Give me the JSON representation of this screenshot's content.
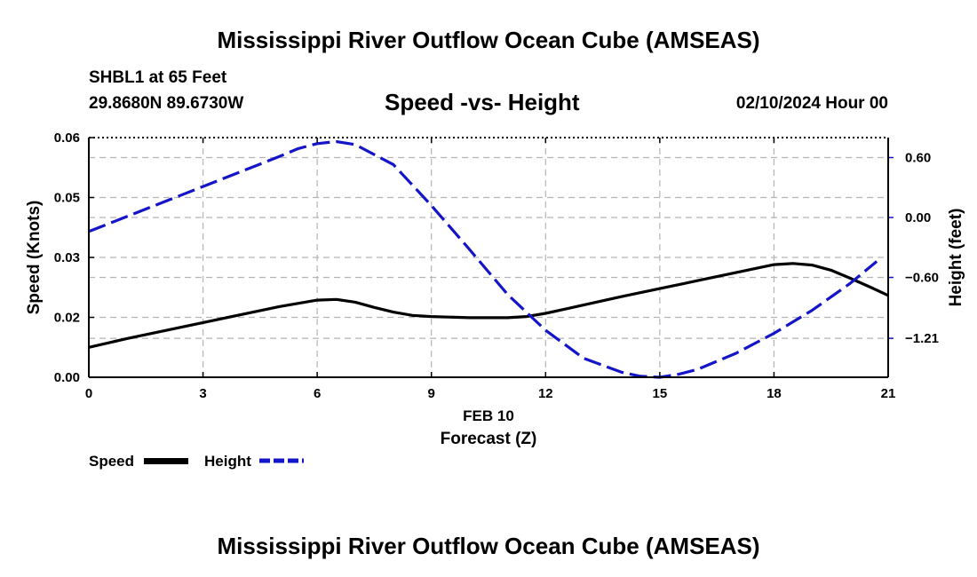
{
  "header": {
    "title": "Mississippi River Outflow Ocean Cube (AMSEAS)",
    "station": "SHBL1 at 65 Feet",
    "coords": "29.8680N  89.6730W",
    "subtitle": "Speed -vs- Height",
    "datetime": "02/10/2024 Hour 00"
  },
  "footer": {
    "title": "Mississippi River Outflow Ocean Cube (AMSEAS)"
  },
  "legend": {
    "speed_label": "Speed",
    "height_label": "Height"
  },
  "colors": {
    "speed": "#000000",
    "height": "#1414c8",
    "grid": "#b4b4b4"
  },
  "chart_data": {
    "type": "line",
    "title": "Speed -vs- Height",
    "xlabel": "Forecast (Z)",
    "xlabel_date": "FEB 10",
    "ylabel_left": "Speed (Knots)",
    "ylabel_right": "Height (feet)",
    "xlim": [
      0,
      21
    ],
    "ylim_left": [
      0,
      0.06
    ],
    "ylim_right": [
      -1.6,
      0.8
    ],
    "x_ticks": [
      0,
      3,
      6,
      9,
      12,
      15,
      18,
      21
    ],
    "y_ticks_left": [
      {
        "value": 0,
        "label": "0.00"
      },
      {
        "value": 0.015,
        "label": "0.02"
      },
      {
        "value": 0.03,
        "label": "0.03"
      },
      {
        "value": 0.045,
        "label": "0.05"
      },
      {
        "value": 0.06,
        "label": "0.06"
      }
    ],
    "y_ticks_right": [
      {
        "value": 0.6,
        "label": "0.60"
      },
      {
        "value": 0.0,
        "label": "0.00"
      },
      {
        "value": -0.6,
        "label": "−0.60"
      },
      {
        "value": -1.21,
        "label": "−1.21"
      }
    ],
    "grid": true,
    "series": [
      {
        "name": "Speed",
        "axis": "left",
        "style": "solid",
        "x": [
          0,
          1,
          2,
          3,
          4,
          5,
          6,
          6.5,
          7,
          7.5,
          8,
          8.5,
          9,
          10,
          11,
          11.5,
          12,
          13,
          14,
          15,
          16,
          17,
          18,
          18.5,
          19,
          19.5,
          20,
          20.5,
          21
        ],
        "y": [
          0.0075,
          0.0097,
          0.0117,
          0.0137,
          0.0157,
          0.0177,
          0.0193,
          0.0195,
          0.0188,
          0.0175,
          0.0163,
          0.0155,
          0.0152,
          0.0149,
          0.0149,
          0.0152,
          0.016,
          0.0181,
          0.0202,
          0.0222,
          0.0242,
          0.0262,
          0.0282,
          0.0285,
          0.0281,
          0.0268,
          0.0248,
          0.0227,
          0.0205
        ]
      },
      {
        "name": "Height",
        "axis": "right",
        "style": "dashed",
        "x": [
          0,
          1,
          2,
          3,
          4,
          5,
          5.5,
          6,
          6.5,
          7,
          8,
          9,
          10,
          11,
          12,
          13,
          14,
          14.5,
          15,
          15.5,
          16,
          17,
          18,
          19,
          20,
          20.7
        ],
        "y": [
          -0.14,
          0.01,
          0.16,
          0.31,
          0.46,
          0.61,
          0.69,
          0.74,
          0.76,
          0.73,
          0.53,
          0.12,
          -0.32,
          -0.77,
          -1.13,
          -1.41,
          -1.55,
          -1.59,
          -1.6,
          -1.57,
          -1.52,
          -1.36,
          -1.16,
          -0.93,
          -0.66,
          -0.44
        ]
      }
    ]
  }
}
